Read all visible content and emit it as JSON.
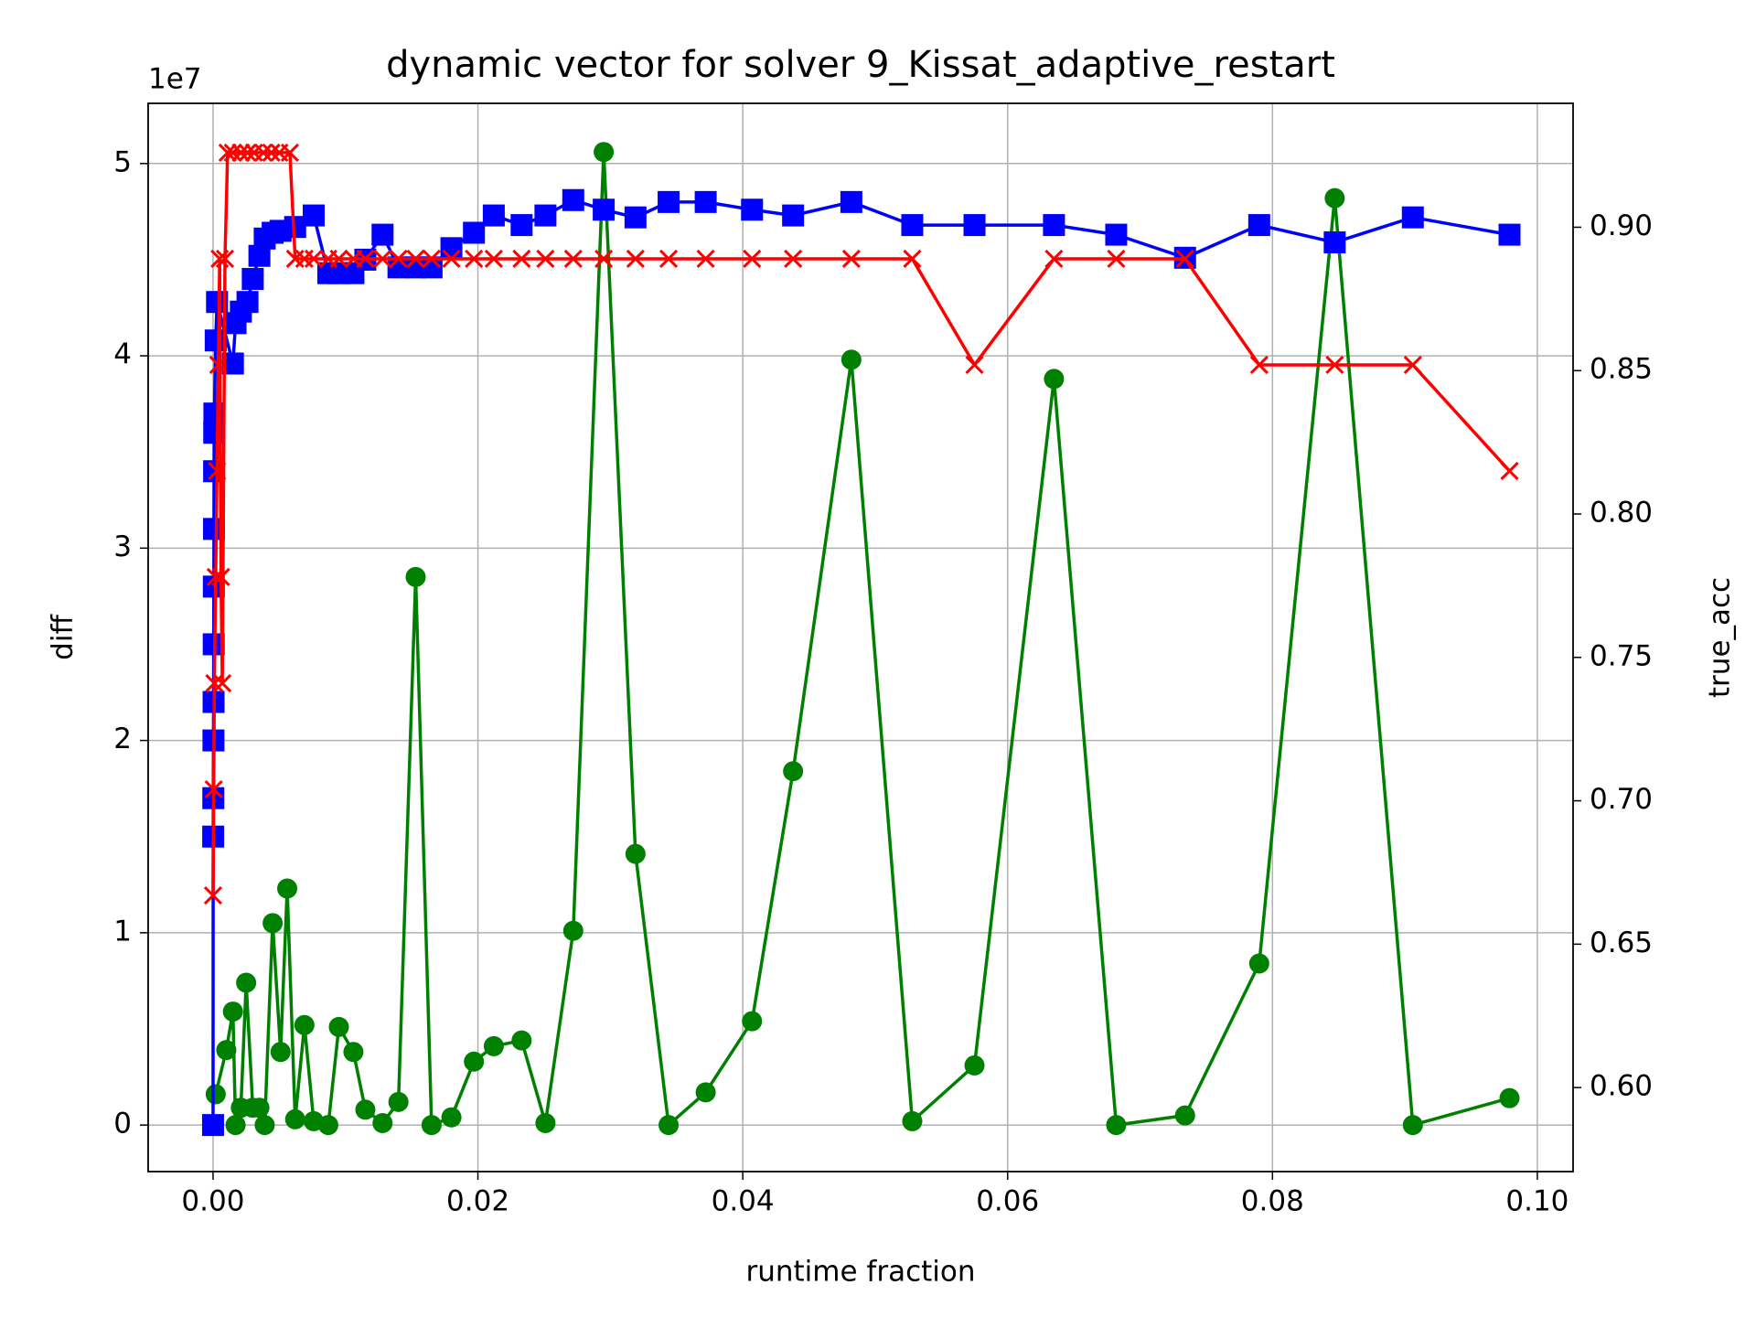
{
  "chart_data": {
    "type": "line",
    "title": "dynamic vector for solver 9_Kissat_adaptive_restart",
    "x_label": "runtime fraction",
    "y_label": "diff",
    "y2_label": "true_acc",
    "y_label_color": "#008000",
    "y2_label_color": "#ff0000",
    "y_offset_label": "1e7",
    "xlim": [
      -0.0049,
      0.1027
    ],
    "ylim": [
      -2420000,
      53130000
    ],
    "y2lim": [
      0.5707,
      0.9432
    ],
    "xticks": [
      {
        "value": 0,
        "label": "0.00"
      },
      {
        "value": 0.02,
        "label": "0.02"
      },
      {
        "value": 0.04,
        "label": "0.04"
      },
      {
        "value": 0.06,
        "label": "0.06"
      },
      {
        "value": 0.08,
        "label": "0.08"
      },
      {
        "value": 0.1,
        "label": "0.10"
      }
    ],
    "yticks": [
      0,
      {
        "value": 10000000,
        "label": "1"
      },
      {
        "value": 20000000,
        "label": "2"
      },
      {
        "value": 30000000,
        "label": "3"
      },
      {
        "value": 40000000,
        "label": "4"
      },
      {
        "value": 50000000,
        "label": "5"
      }
    ],
    "y2ticks": [
      {
        "value": 0.6,
        "label": "0.60"
      },
      {
        "value": 0.65,
        "label": "0.65"
      },
      {
        "value": 0.7,
        "label": "0.70"
      },
      {
        "value": 0.75,
        "label": "0.75"
      },
      {
        "value": 0.8,
        "label": "0.80"
      },
      {
        "value": 0.85,
        "label": "0.85"
      },
      {
        "value": 0.9,
        "label": "0.90"
      }
    ],
    "grid": true,
    "series": [
      {
        "color": "#008000",
        "marker": "o",
        "x": [
          0.0002,
          0.001,
          0.0015,
          0.0017,
          0.0021,
          0.0025,
          0.003,
          0.0035,
          0.0039,
          0.0045,
          0.0051,
          0.0056,
          0.0062,
          0.0069,
          0.0076,
          0.0087,
          0.0095,
          0.0106,
          0.0115,
          0.0128,
          0.014,
          0.0153,
          0.0165,
          0.018,
          0.0197,
          0.0212,
          0.0233,
          0.0251,
          0.0272,
          0.0295,
          0.0319,
          0.0344,
          0.0372,
          0.0407,
          0.0438,
          0.0482,
          0.0528,
          0.0575,
          0.0635,
          0.0682,
          0.0734,
          0.079,
          0.0847,
          0.0906,
          0.0979
        ],
        "values": [
          1600000,
          3900000,
          5900000,
          0,
          900000,
          7400000,
          900000,
          900000,
          0,
          10500000,
          3800000,
          12300000,
          300000,
          5200000,
          200000,
          0,
          5100000,
          3800000,
          800000,
          100000,
          1200000,
          28500000,
          0,
          400000,
          3300000,
          4100000,
          4400000,
          100000,
          10100000,
          50600000,
          14100000,
          0,
          1700000,
          5400000,
          18400000,
          39800000,
          200000,
          3100000,
          38800000,
          0,
          500000,
          8400000,
          48200000,
          0,
          1400000
        ]
      },
      {
        "color": "#0000ff",
        "marker": "s",
        "x": [
          0,
          1e-05,
          2e-05,
          3e-05,
          4e-05,
          5e-05,
          6e-05,
          7e-05,
          8e-05,
          9e-05,
          0.0001,
          0.0002,
          0.0003,
          0.0015,
          0.0017,
          0.0021,
          0.0026,
          0.003,
          0.0035,
          0.0039,
          0.0045,
          0.0051,
          0.0062,
          0.0076,
          0.0087,
          0.0095,
          0.0106,
          0.0115,
          0.0128,
          0.014,
          0.0153,
          0.0165,
          0.018,
          0.0197,
          0.0212,
          0.0233,
          0.0251,
          0.0272,
          0.0295,
          0.0319,
          0.0344,
          0.0372,
          0.0407,
          0.0438,
          0.0482,
          0.0528,
          0.0575,
          0.0635,
          0.0682,
          0.0734,
          0.079,
          0.0847,
          0.0906,
          0.0979
        ],
        "values": [
          0,
          15000000,
          17000000,
          20000000,
          22000000,
          25000000,
          28000000,
          31000000,
          34000000,
          36000000,
          37000000,
          40800000,
          42800000,
          39600000,
          41700000,
          42300000,
          42800000,
          44000000,
          45200000,
          46100000,
          46400000,
          46500000,
          46700000,
          47300000,
          44300000,
          44300000,
          44300000,
          45000000,
          46300000,
          44600000,
          44600000,
          44600000,
          45600000,
          46400000,
          47300000,
          46800000,
          47300000,
          48100000,
          47600000,
          47200000,
          48000000,
          48000000,
          47600000,
          47300000,
          48000000,
          46800000,
          46800000,
          46800000,
          46300000,
          45100000,
          46800000,
          45900000,
          47200000,
          46300000
        ]
      },
      {
        "color": "#ff0000",
        "marker": "x",
        "axis": "y2",
        "x": [
          0,
          5e-05,
          0.0001,
          0.0002,
          0.0003,
          0.0004,
          0.0005,
          0.0006,
          0.0007,
          0.0009,
          0.0011,
          0.0015,
          0.0021,
          0.0026,
          0.0031,
          0.0038,
          0.0044,
          0.005,
          0.0058,
          0.0062,
          0.0069,
          0.0076,
          0.0087,
          0.0095,
          0.0106,
          0.0115,
          0.0128,
          0.014,
          0.0153,
          0.0165,
          0.018,
          0.0197,
          0.0212,
          0.0233,
          0.0251,
          0.0272,
          0.0295,
          0.0319,
          0.0344,
          0.0372,
          0.0407,
          0.0438,
          0.0482,
          0.0528,
          0.0575,
          0.0635,
          0.0682,
          0.0734,
          0.079,
          0.0847,
          0.0906,
          0.0979
        ],
        "values": [
          0.667,
          0.704,
          0.741,
          0.778,
          0.815,
          0.852,
          0.889,
          0.778,
          0.741,
          0.889,
          0.926,
          0.926,
          0.926,
          0.926,
          0.926,
          0.926,
          0.926,
          0.926,
          0.926,
          0.889,
          0.889,
          0.889,
          0.889,
          0.889,
          0.889,
          0.889,
          0.889,
          0.889,
          0.889,
          0.889,
          0.889,
          0.889,
          0.889,
          0.889,
          0.889,
          0.889,
          0.889,
          0.889,
          0.889,
          0.889,
          0.889,
          0.889,
          0.889,
          0.889,
          0.852,
          0.889,
          0.889,
          0.889,
          0.852,
          0.852,
          0.852,
          0.815
        ]
      }
    ]
  }
}
